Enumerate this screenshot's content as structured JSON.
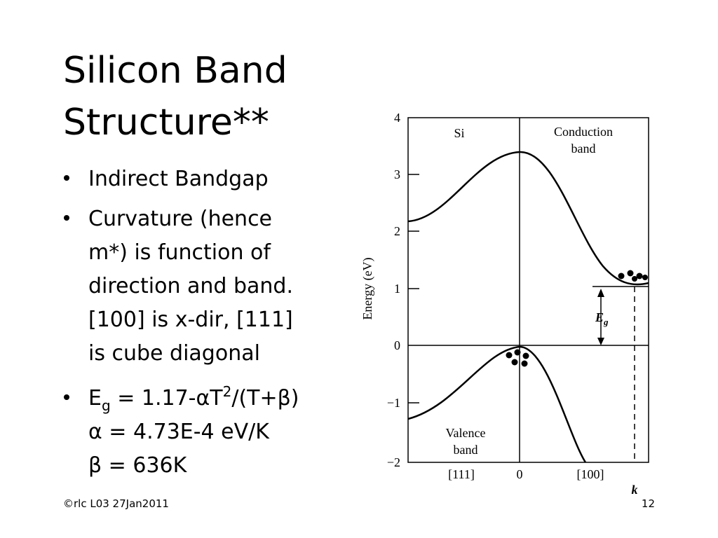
{
  "title": [
    "Silicon Band",
    "Structure**"
  ],
  "bullets": [
    {
      "lines": [
        "Indirect Bandgap"
      ]
    },
    {
      "lines": [
        "Curvature (hence",
        "m*) is function of",
        "direction and band.",
        "[100] is x-dir, [111]",
        "is cube diagonal"
      ]
    },
    {
      "first": [
        "E",
        "g",
        " = 1.17-αT",
        "2",
        "/(T+β)"
      ],
      "lines": [
        "α = 4.73E-4 eV/K",
        "β = 636K"
      ]
    }
  ],
  "figure": {
    "yticks": [
      "4",
      "3",
      "2",
      "1",
      "0",
      "−1",
      "−2"
    ],
    "ylabel": "Energy (eV)",
    "xlabels": [
      "[111]",
      "0",
      "[100]"
    ],
    "xaxis": "k",
    "region_left": "Si",
    "conduction": [
      "Conduction",
      "band"
    ],
    "valence": [
      "Valence",
      "band"
    ],
    "gap": [
      "E",
      "g"
    ]
  },
  "footer": {
    "left": "©rlc L03 27Jan2011",
    "right": "12"
  }
}
